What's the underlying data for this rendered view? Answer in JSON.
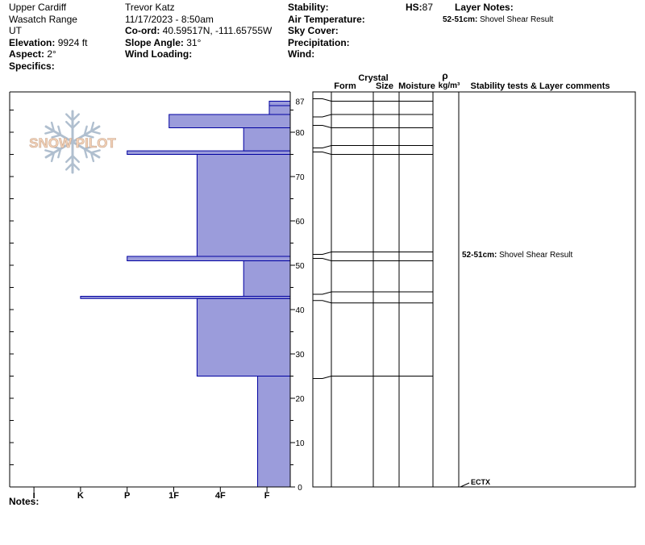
{
  "header": {
    "location": "Upper Cardiff",
    "range": "Wasatch Range",
    "state": "UT",
    "elevation_label": "Elevation:",
    "elevation_value": "9924 ft",
    "aspect_label": "Aspect:",
    "aspect_value": "2°",
    "specifics_label": "Specifics:",
    "observer": "Trevor Katz",
    "datetime": "11/17/2023 - 8:50am",
    "coord_label": "Co-ord:",
    "coord_value": "40.59517N, -111.65755W",
    "slope_label": "Slope Angle:",
    "slope_value": "31°",
    "wind_loading_label": "Wind Loading:",
    "stability_label": "Stability:",
    "air_temp_label": "Air Temperature:",
    "sky_cover_label": "Sky Cover:",
    "precipitation_label": "Precipitation:",
    "wind_label": "Wind:",
    "hs_label": "HS:",
    "hs_value": "87",
    "layer_notes_label": "Layer Notes:",
    "layer_note_depth": "52-51cm:",
    "layer_note_text": "Shovel Shear Result",
    "notes_label": "Notes:"
  },
  "logo": {
    "text": "SNOW PILOT"
  },
  "columns": {
    "crystal": "Crystal",
    "form": "Form",
    "size": "Size",
    "moisture": "Moisture",
    "rho": "ρ",
    "density_unit": "kg/m³",
    "stability": "Stability tests & Layer comments"
  },
  "chart_data": {
    "type": "bar",
    "orientation": "horizontal",
    "y_axis": {
      "label": "",
      "ylim": [
        0,
        87
      ],
      "ticks": [
        0,
        10,
        20,
        30,
        40,
        50,
        60,
        70,
        80,
        87
      ]
    },
    "x_axis": {
      "label": "",
      "categories": [
        "I",
        "K",
        "P",
        "1F",
        "4F",
        "F"
      ],
      "category_positions": {
        "I": 5,
        "K": 4,
        "P": 3,
        "1F": 2,
        "4F": 1,
        "F": 0
      },
      "max_extent": 5.6
    },
    "hardness_layers": [
      {
        "bottom_cm": 0,
        "top_cm": 25,
        "hardness": "4F-",
        "extent": 0.7
      },
      {
        "bottom_cm": 25,
        "top_cm": 42.5,
        "hardness": "1F",
        "extent": 2
      },
      {
        "bottom_cm": 42.5,
        "top_cm": 43,
        "hardness": "K+",
        "extent": 4.5
      },
      {
        "bottom_cm": 43,
        "top_cm": 51,
        "hardness": "4F",
        "extent": 1
      },
      {
        "bottom_cm": 51,
        "top_cm": 52,
        "hardness": "P",
        "extent": 3.5
      },
      {
        "bottom_cm": 52,
        "top_cm": 75,
        "hardness": "1F",
        "extent": 2
      },
      {
        "bottom_cm": 75,
        "top_cm": 75.8,
        "hardness": "P",
        "extent": 3.5
      },
      {
        "bottom_cm": 75.8,
        "top_cm": 81,
        "hardness": "4F",
        "extent": 1
      },
      {
        "bottom_cm": 81,
        "top_cm": 84,
        "hardness": "1F",
        "extent": 2.6
      },
      {
        "bottom_cm": 84,
        "top_cm": 86,
        "hardness": "F+",
        "extent": 0.45
      },
      {
        "bottom_cm": 86,
        "top_cm": 87,
        "hardness": "F",
        "extent": 0.45
      }
    ],
    "layer_boundaries_cm": [
      87,
      84,
      81,
      77,
      75,
      53,
      51,
      44,
      41.5,
      25
    ],
    "stability_annotations": [
      {
        "depth_cm": 51.5,
        "depth_label": "52-51cm:",
        "text": "Shovel Shear Result"
      },
      {
        "depth_cm": 0,
        "text": "ECTX"
      }
    ],
    "colors": {
      "fill": "#9b9cdb",
      "stroke": "#0000a0",
      "lines": "#000000",
      "logo": "#b0bfcf",
      "logo_text": "#f0c7a8"
    }
  }
}
